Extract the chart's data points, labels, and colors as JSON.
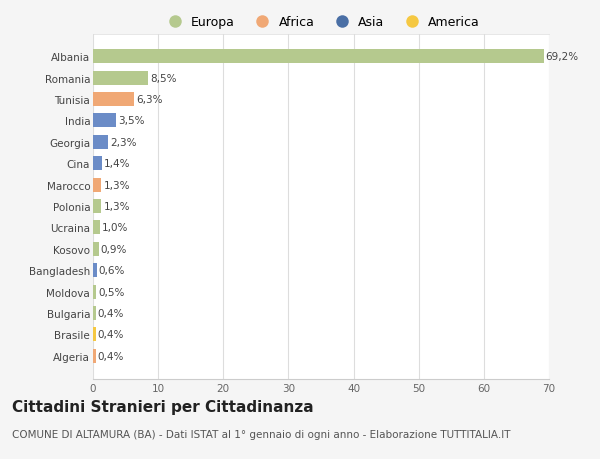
{
  "countries": [
    "Albania",
    "Romania",
    "Tunisia",
    "India",
    "Georgia",
    "Cina",
    "Marocco",
    "Polonia",
    "Ucraina",
    "Kosovo",
    "Bangladesh",
    "Moldova",
    "Bulgaria",
    "Brasile",
    "Algeria"
  ],
  "values": [
    69.2,
    8.5,
    6.3,
    3.5,
    2.3,
    1.4,
    1.3,
    1.3,
    1.0,
    0.9,
    0.6,
    0.5,
    0.4,
    0.4,
    0.4
  ],
  "labels": [
    "69,2%",
    "8,5%",
    "6,3%",
    "3,5%",
    "2,3%",
    "1,4%",
    "1,3%",
    "1,3%",
    "1,0%",
    "0,9%",
    "0,6%",
    "0,5%",
    "0,4%",
    "0,4%",
    "0,4%"
  ],
  "colors": [
    "#b5c98e",
    "#b5c98e",
    "#f0a875",
    "#6b8cc7",
    "#6b8cc7",
    "#6b8cc7",
    "#f0a875",
    "#b5c98e",
    "#b5c98e",
    "#b5c98e",
    "#6b8cc7",
    "#b5c98e",
    "#b5c98e",
    "#f5c842",
    "#f0a875"
  ],
  "legend_labels": [
    "Europa",
    "Africa",
    "Asia",
    "America"
  ],
  "legend_colors": [
    "#b5c98e",
    "#f0a875",
    "#4a6fa5",
    "#f5c842"
  ],
  "title": "Cittadini Stranieri per Cittadinanza",
  "subtitle": "COMUNE DI ALTAMURA (BA) - Dati ISTAT al 1° gennaio di ogni anno - Elaborazione TUTTITALIA.IT",
  "xlim": [
    0,
    70
  ],
  "xticks": [
    0,
    10,
    20,
    30,
    40,
    50,
    60,
    70
  ],
  "background_color": "#f5f5f5",
  "bar_background": "#ffffff",
  "title_fontsize": 11,
  "subtitle_fontsize": 7.5,
  "label_fontsize": 7.5,
  "tick_fontsize": 7.5,
  "legend_fontsize": 9
}
